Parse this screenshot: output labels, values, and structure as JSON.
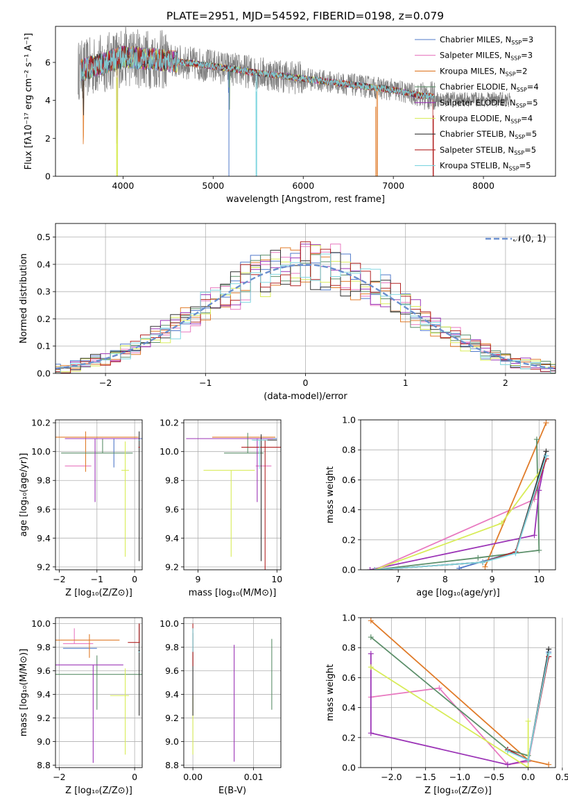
{
  "colors": {
    "chabrier_miles": "#4f78c9",
    "salpeter_miles": "#e879c0",
    "kroupa_miles": "#e07b29",
    "chabrier_elodie": "#5c8f6a",
    "salpeter_elodie": "#9b33b6",
    "kroupa_elodie": "#d8ec58",
    "chabrier_stelib": "#333333",
    "salpeter_stelib": "#b22222",
    "kroupa_stelib": "#7fd6e0",
    "observed": "#808080",
    "normal": "#6a8fce"
  },
  "chart_data": [
    {
      "type": "line",
      "title": "PLATE=2951, MJD=54592, FIBERID=0198, z=0.079",
      "xlabel": "wavelength [Angstrom, rest frame]",
      "ylabel": "Flux [fλ10⁻¹⁷ erg cm⁻² s⁻¹ A⁻¹]",
      "xlim": [
        3250,
        8800
      ],
      "ylim": [
        0,
        7.9
      ],
      "xticks": [
        "4000",
        "5000",
        "6000",
        "7000",
        "8000"
      ],
      "yticks": [
        "0",
        "2",
        "4",
        "6"
      ],
      "legend_position": "right",
      "series": [
        {
          "name": "Chabrier MILES, N",
          "sub": "SSP",
          "suffix": "=3"
        },
        {
          "name": "Salpeter MILES, N",
          "sub": "SSP",
          "suffix": "=3"
        },
        {
          "name": "Kroupa MILES, N",
          "sub": "SSP",
          "suffix": "=2"
        },
        {
          "name": "Chabrier ELODIE, N",
          "sub": "SSP",
          "suffix": "=4"
        },
        {
          "name": "Salpeter ELODIE, N",
          "sub": "SSP",
          "suffix": "=5"
        },
        {
          "name": "Kroupa ELODIE, N",
          "sub": "SSP",
          "suffix": "=4"
        },
        {
          "name": "Chabrier STELIB, N",
          "sub": "SSP",
          "suffix": "=5"
        },
        {
          "name": "Salpeter STELIB, N",
          "sub": "SSP",
          "suffix": "=5"
        },
        {
          "name": "Kroupa STELIB, N",
          "sub": "SSP",
          "suffix": "=5"
        }
      ],
      "continuum": {
        "x": [
          3550,
          4000,
          4500,
          5000,
          5500,
          6000,
          6500,
          7000,
          7300,
          7450
        ],
        "y": [
          5.6,
          6.3,
          6.1,
          5.8,
          5.45,
          5.15,
          4.85,
          4.55,
          4.25,
          4.2
        ]
      },
      "observed_range": [
        3500,
        8300
      ],
      "model_range": [
        3530,
        7450
      ]
    },
    {
      "type": "bar",
      "xlabel": "(data-model)/error",
      "ylabel": "Normed distribution",
      "xlim": [
        -2.5,
        2.5
      ],
      "ylim": [
        0,
        0.55
      ],
      "xticks": [
        "−2",
        "−1",
        "0",
        "1",
        "2"
      ],
      "yticks": [
        "0.0",
        "0.1",
        "0.2",
        "0.3",
        "0.4",
        "0.5"
      ],
      "legend": "𝒩(0, 1)",
      "bin_width": 0.1
    },
    {
      "type": "scatter",
      "xlabel": "Z [log₁₀(Z/Z⊙)]",
      "ylabel": "age  [log₁₀(age/yr)]",
      "xlim": [
        -2.1,
        0.2
      ],
      "ylim": [
        9.18,
        10.22
      ],
      "xticks": [
        "−2",
        "−1",
        "0"
      ],
      "yticks": [
        "9.2",
        "9.4",
        "9.6",
        "9.8",
        "10.0",
        "10.2"
      ],
      "points": [
        {
          "c": "chabrier_miles",
          "x": -0.55,
          "y": 10.09
        },
        {
          "c": "salpeter_miles",
          "x": -1.45,
          "y": 9.9
        },
        {
          "c": "kroupa_miles",
          "x": -1.3,
          "y": 10.1
        },
        {
          "c": "chabrier_elodie",
          "x": -0.85,
          "y": 9.99
        },
        {
          "c": "salpeter_elodie",
          "x": -1.05,
          "y": 10.09
        },
        {
          "c": "kroupa_elodie",
          "x": -0.25,
          "y": 9.87
        },
        {
          "c": "chabrier_stelib",
          "x": 0.12,
          "y": 10.08
        },
        {
          "c": "salpeter_stelib",
          "x": 0.12,
          "y": 10.03
        },
        {
          "c": "kroupa_stelib",
          "x": 0.12,
          "y": 10.08
        }
      ]
    },
    {
      "type": "scatter",
      "xlabel": "mass [log₁₀(M/M⊙)]",
      "ylabel": "",
      "xlim": [
        8.82,
        10.05
      ],
      "ylim": [
        9.18,
        10.22
      ],
      "xticks": [
        "9",
        "10"
      ],
      "yticks": [
        "9.2",
        "9.4",
        "9.6",
        "9.8",
        "10.0",
        "10.2"
      ],
      "points": [
        {
          "c": "chabrier_miles",
          "x": 9.8,
          "y": 10.09
        },
        {
          "c": "salpeter_miles",
          "x": 9.83,
          "y": 9.9
        },
        {
          "c": "kroupa_miles",
          "x": 9.78,
          "y": 10.1
        },
        {
          "c": "chabrier_elodie",
          "x": 9.63,
          "y": 9.99
        },
        {
          "c": "salpeter_elodie",
          "x": 9.75,
          "y": 10.09
        },
        {
          "c": "kroupa_elodie",
          "x": 9.42,
          "y": 9.87
        },
        {
          "c": "chabrier_stelib",
          "x": 9.8,
          "y": 10.08
        },
        {
          "c": "salpeter_stelib",
          "x": 9.85,
          "y": 10.03
        },
        {
          "c": "kroupa_stelib",
          "x": 9.78,
          "y": 10.08
        }
      ]
    },
    {
      "type": "line",
      "xlabel": "age  [log₁₀(age/yr)]",
      "ylabel": "mass weight",
      "xlim": [
        6.2,
        10.35
      ],
      "ylim": [
        0,
        1.0
      ],
      "xticks": [
        "7",
        "8",
        "9",
        "10"
      ],
      "yticks": [
        "0.0",
        "0.2",
        "0.4",
        "0.6",
        "0.8",
        "1.0"
      ],
      "series": [
        {
          "c": "chabrier_miles",
          "x": [
            8.3,
            9.5,
            10.15
          ],
          "y": [
            0.01,
            0.12,
            0.76
          ]
        },
        {
          "c": "salpeter_miles",
          "x": [
            6.5,
            9.9,
            10.15
          ],
          "y": [
            0.0,
            0.47,
            0.74
          ]
        },
        {
          "c": "kroupa_miles",
          "x": [
            8.85,
            10.15
          ],
          "y": [
            0.02,
            0.98
          ]
        },
        {
          "c": "chabrier_elodie",
          "x": [
            6.5,
            8.7,
            10.0,
            9.95
          ],
          "y": [
            0.0,
            0.08,
            0.13,
            0.87
          ]
        },
        {
          "c": "salpeter_elodie",
          "x": [
            6.4,
            9.9,
            10.0,
            10.15
          ],
          "y": [
            0.0,
            0.23,
            0.53,
            0.76
          ]
        },
        {
          "c": "kroupa_elodie",
          "x": [
            6.5,
            9.2,
            10.05
          ],
          "y": [
            0.0,
            0.31,
            0.67
          ]
        },
        {
          "c": "chabrier_stelib",
          "x": [
            6.5,
            8.8,
            9.5,
            10.15
          ],
          "y": [
            0.0,
            0.05,
            0.12,
            0.79
          ]
        },
        {
          "c": "salpeter_stelib",
          "x": [
            6.5,
            8.8,
            9.5,
            10.15
          ],
          "y": [
            0.0,
            0.05,
            0.12,
            0.74
          ]
        },
        {
          "c": "kroupa_stelib",
          "x": [
            6.5,
            8.8,
            9.5,
            10.15
          ],
          "y": [
            0.0,
            0.05,
            0.11,
            0.76
          ]
        }
      ]
    },
    {
      "type": "scatter",
      "xlabel": "Z [log₁₀(Z/Z⊙)]",
      "ylabel": "mass [log₁₀(M/M⊙)]",
      "xlim": [
        -2.1,
        0.2
      ],
      "ylim": [
        8.78,
        10.05
      ],
      "xticks": [
        "−2",
        "0"
      ],
      "yticks": [
        "8.8",
        "9.0",
        "9.2",
        "9.4",
        "9.6",
        "9.8",
        "10.0"
      ],
      "points": [
        {
          "c": "chabrier_miles",
          "x": -1.2,
          "y": 9.79
        },
        {
          "c": "salpeter_miles",
          "x": -1.6,
          "y": 9.83
        },
        {
          "c": "kroupa_miles",
          "x": -1.2,
          "y": 9.86
        },
        {
          "c": "chabrier_elodie",
          "x": -1.0,
          "y": 9.57
        },
        {
          "c": "salpeter_elodie",
          "x": -1.1,
          "y": 9.65
        },
        {
          "c": "kroupa_elodie",
          "x": -0.25,
          "y": 9.39
        },
        {
          "c": "chabrier_stelib",
          "x": 0.12,
          "y": 9.77
        },
        {
          "c": "salpeter_stelib",
          "x": 0.12,
          "y": 9.84
        },
        {
          "c": "kroupa_stelib",
          "x": 0.12,
          "y": 9.76
        }
      ]
    },
    {
      "type": "scatter",
      "xlabel": "E(B-V)",
      "ylabel": "",
      "xlim": [
        -0.0015,
        0.0145
      ],
      "ylim": [
        8.78,
        10.05
      ],
      "xticks": [
        "0.00",
        "0.01"
      ],
      "yticks": [
        "8.8",
        "9.0",
        "9.2",
        "9.4",
        "9.6",
        "9.8",
        "10.0"
      ],
      "points": [
        {
          "c": "chabrier_miles",
          "x": 0.0,
          "y": 9.79
        },
        {
          "c": "salpeter_miles",
          "x": 0.0,
          "y": 9.83
        },
        {
          "c": "kroupa_miles",
          "x": 0.0,
          "y": 9.86
        },
        {
          "c": "chabrier_elodie",
          "x": 0.013,
          "y": 9.57
        },
        {
          "c": "salpeter_elodie",
          "x": 0.0068,
          "y": 9.65
        },
        {
          "c": "kroupa_elodie",
          "x": 0.0,
          "y": 9.39
        },
        {
          "c": "chabrier_stelib",
          "x": 0.0,
          "y": 9.77
        },
        {
          "c": "salpeter_stelib",
          "x": 0.0,
          "y": 9.84
        },
        {
          "c": "kroupa_stelib",
          "x": 0.0,
          "y": 9.76
        }
      ]
    },
    {
      "type": "line",
      "xlabel": "Z [log₁₀(Z/Z⊙)]",
      "ylabel": "mass weight",
      "xlim": [
        -2.45,
        0.4
      ],
      "ylim": [
        0,
        1.0
      ],
      "xticks": [
        "−2.0",
        "−1.5",
        "−1.0",
        "−0.5",
        "0.0",
        "0.5"
      ],
      "yticks": [
        "0.0",
        "0.2",
        "0.4",
        "0.6",
        "0.8",
        "1.0"
      ],
      "series": [
        {
          "c": "chabrier_miles",
          "x": [
            -0.3,
            0.0,
            0.3
          ],
          "y": [
            0.12,
            0.05,
            0.77
          ]
        },
        {
          "c": "salpeter_miles",
          "x": [
            -2.3,
            -1.3,
            -0.3,
            0.0,
            0.3
          ],
          "y": [
            0.47,
            0.53,
            0.02,
            0.04,
            0.74
          ]
        },
        {
          "c": "kroupa_miles",
          "x": [
            -2.3,
            0.0,
            0.3
          ],
          "y": [
            0.98,
            0.05,
            0.02
          ]
        },
        {
          "c": "chabrier_elodie",
          "x": [
            -2.3,
            -0.3,
            0.0
          ],
          "y": [
            0.87,
            0.12,
            0.08
          ]
        },
        {
          "c": "salpeter_elodie",
          "x": [
            -2.3,
            -2.3,
            -0.3,
            0.0
          ],
          "y": [
            0.76,
            0.23,
            0.02,
            0.05
          ]
        },
        {
          "c": "kroupa_elodie",
          "x": [
            -2.3,
            0.0,
            0.0
          ],
          "y": [
            0.67,
            0.0,
            0.31
          ]
        },
        {
          "c": "chabrier_stelib",
          "x": [
            -0.3,
            0.0,
            0.3
          ],
          "y": [
            0.12,
            0.05,
            0.79
          ]
        },
        {
          "c": "salpeter_stelib",
          "x": [
            -0.3,
            0.0,
            0.3
          ],
          "y": [
            0.12,
            0.05,
            0.74
          ]
        },
        {
          "c": "kroupa_stelib",
          "x": [
            -0.3,
            0.0,
            0.3
          ],
          "y": [
            0.11,
            0.05,
            0.76
          ]
        }
      ]
    }
  ]
}
